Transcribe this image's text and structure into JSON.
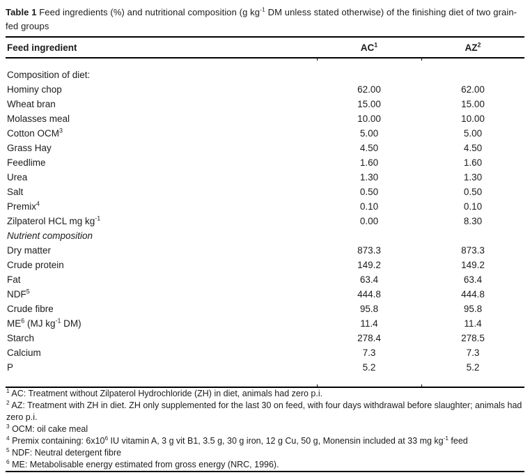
{
  "page": {
    "caption_label": "Table 1",
    "caption_text": " Feed ingredients (%) and nutritional composition (g kg^-1^ DM unless stated otherwise) of the finishing diet of two grain-fed groups"
  },
  "table": {
    "columns": {
      "feed_ingredient": "Feed ingredient",
      "ac": "AC^1^",
      "az": "AZ^2^"
    },
    "rows": [
      {
        "label": "Composition of diet:",
        "ac": "",
        "az": ""
      },
      {
        "label": "Hominy chop",
        "ac": "62.00",
        "az": "62.00"
      },
      {
        "label": "Wheat bran",
        "ac": "15.00",
        "az": "15.00"
      },
      {
        "label": "Molasses meal",
        "ac": "10.00",
        "az": "10.00"
      },
      {
        "label": "Cotton OCM^3^",
        "ac": "5.00",
        "az": "5.00"
      },
      {
        "label": "Grass Hay",
        "ac": "4.50",
        "az": "4.50"
      },
      {
        "label": "Feedlime",
        "ac": "1.60",
        "az": "1.60"
      },
      {
        "label": "Urea",
        "ac": "1.30",
        "az": "1.30"
      },
      {
        "label": "Salt",
        "ac": "0.50",
        "az": "0.50"
      },
      {
        "label": "Premix^4^",
        "ac": "0.10",
        "az": "0.10"
      },
      {
        "label": "Zilpaterol HCL mg kg^-1^",
        "ac": "0.00",
        "az": "8.30"
      },
      {
        "label": "Nutrient composition",
        "ac": "",
        "az": "",
        "italic": true
      },
      {
        "label": "Dry matter",
        "ac": "873.3",
        "az": "873.3"
      },
      {
        "label": "Crude protein",
        "ac": "149.2",
        "az": "149.2"
      },
      {
        "label": "Fat",
        "ac": "63.4",
        "az": "63.4"
      },
      {
        "label": "NDF^5^",
        "ac": "444.8",
        "az": "444.8"
      },
      {
        "label": "Crude fibre",
        "ac": "95.8",
        "az": "95.8"
      },
      {
        "label": "ME^6^ (MJ kg^-1^ DM)",
        "ac": "11.4",
        "az": "11.4"
      },
      {
        "label": "Starch",
        "ac": "278.4",
        "az": "278.5"
      },
      {
        "label": "Calcium",
        "ac": "7.3",
        "az": "7.3"
      },
      {
        "label": "P",
        "ac": "5.2",
        "az": "5.2"
      }
    ]
  },
  "footnotes": [
    "^1^ AC: Treatment without Zilpaterol Hydrochloride (ZH) in diet, animals had zero p.i.",
    "^2^ AZ: Treatment with ZH in diet. ZH only supplemented for the last 30 on feed, with four days withdrawal before slaughter; animals had zero p.i.",
    "^3^ OCM: oil cake meal",
    "^4^ Premix containing: 6x10^6^ IU vitamin A, 3 g vit B1, 3.5 g, 30 g iron, 12 g Cu, 50 g, Monensin included at 33 mg kg^-1^ feed",
    "^5^ NDF: Neutral detergent fibre",
    "^6^ ME: Metabolisable energy estimated from gross energy (NRC, 1996)."
  ],
  "colors": {
    "text": "#1b1b1b",
    "rule": "#000000",
    "background": "#ffffff"
  }
}
